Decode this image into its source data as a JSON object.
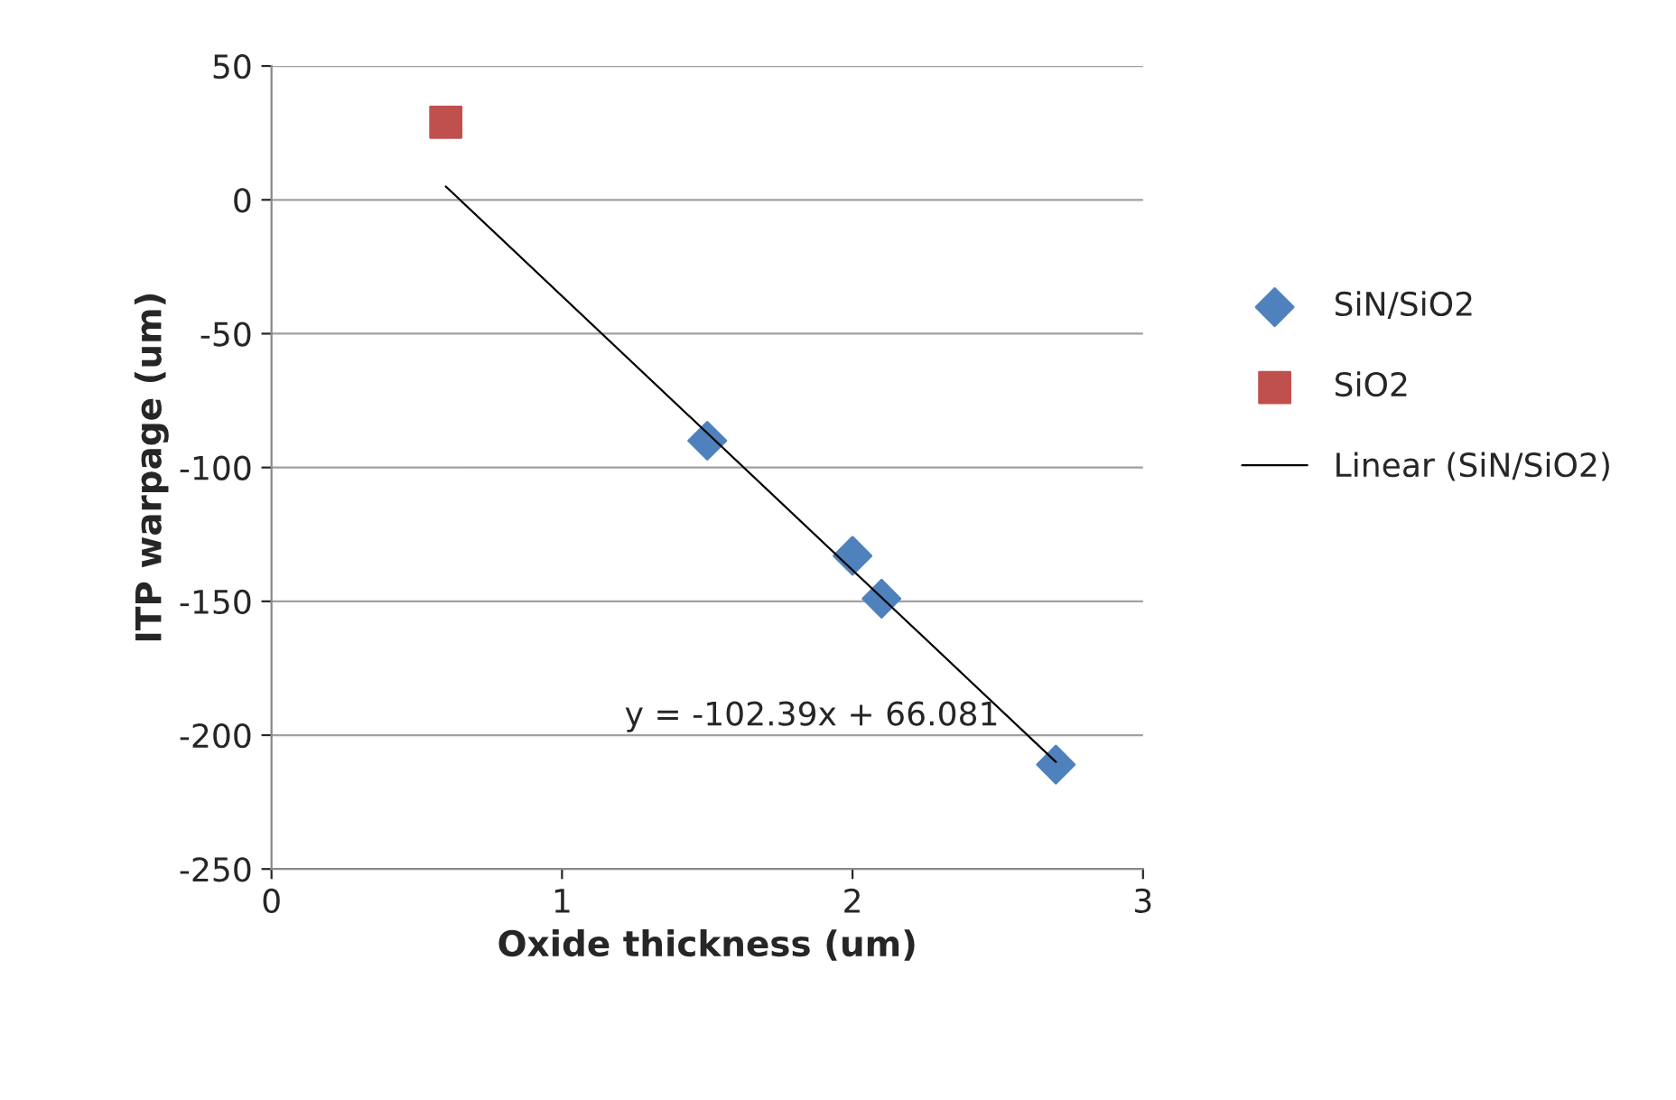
{
  "chart_data": {
    "type": "scatter",
    "xlabel": "Oxide thickness (um)",
    "ylabel": "ITP warpage (um)",
    "xlim": [
      0,
      3
    ],
    "xticks": [
      0,
      1,
      2,
      3
    ],
    "ylim": [
      -250,
      50
    ],
    "yticks": [
      -250,
      -200,
      -150,
      -100,
      -50,
      0,
      50
    ],
    "grid": "y",
    "legend": "right",
    "series": [
      {
        "name": "SiN/SiO2",
        "color": "#4f81bd",
        "marker": "diamond",
        "x": [
          1.5,
          2,
          2.1,
          2.7
        ],
        "values": [
          -90,
          -133,
          -149,
          -211
        ]
      },
      {
        "name": "SiO2",
        "color": "#c0504d",
        "marker": "square",
        "x": [
          0.6
        ],
        "values": [
          29
        ]
      },
      {
        "name": "Linear (SiN/SiO2)",
        "type": "line",
        "color": "#000000",
        "marker": "none",
        "x": [
          0.6,
          2.7
        ],
        "values": [
          5,
          -210
        ]
      }
    ],
    "annotations": [
      "y = -102.39x + 66.081"
    ]
  }
}
